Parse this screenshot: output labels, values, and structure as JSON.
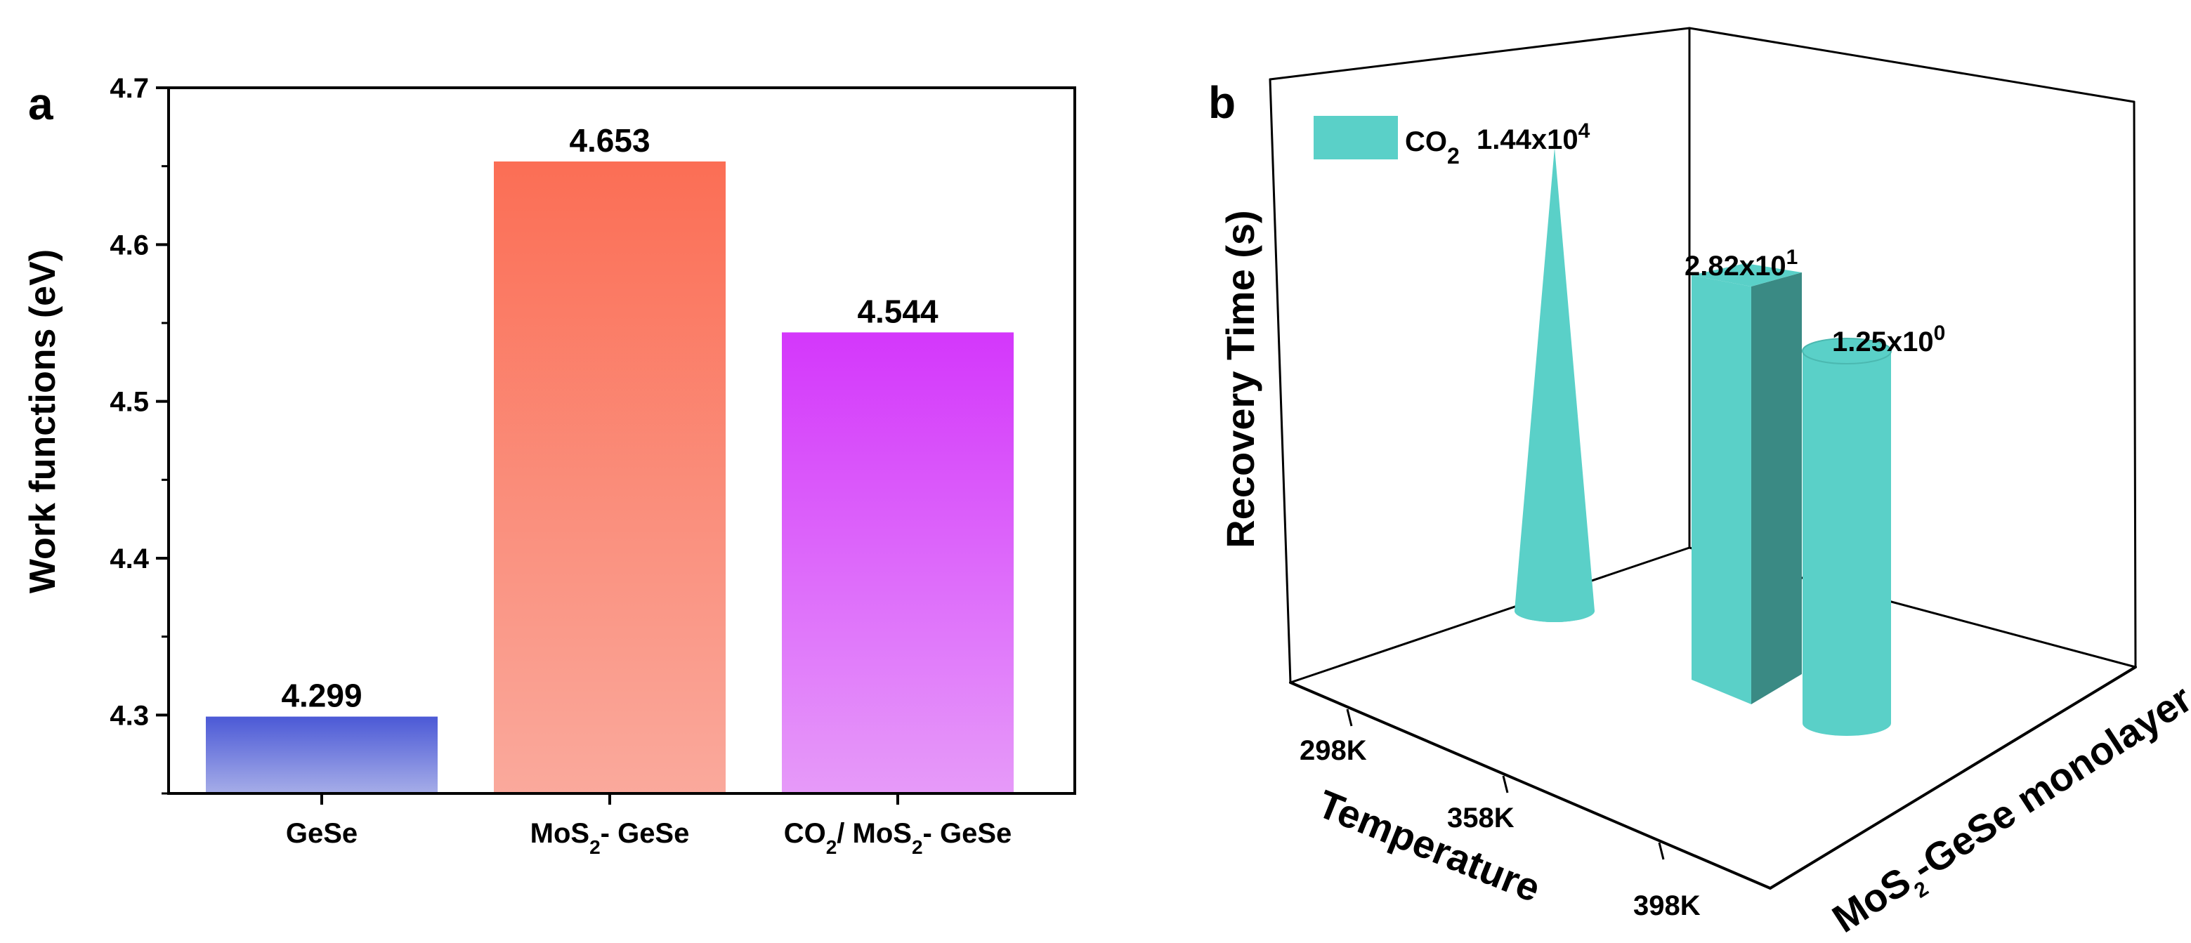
{
  "chart_data": [
    {
      "panel": "a",
      "type": "bar",
      "ylabel": "Work functions (eV)",
      "xlabel": "",
      "ylim": [
        4.25,
        4.7
      ],
      "yticks": [
        "4.3",
        "4.4",
        "4.5",
        "4.6",
        "4.7"
      ],
      "categories": [
        {
          "pre": "GeSe",
          "sub": "",
          "post": ""
        },
        {
          "pre": "MoS",
          "sub": "2",
          "post": "- GeSe"
        },
        {
          "pre": "CO",
          "sub": "2",
          "post": "/ MoS₂- GeSe"
        }
      ],
      "category_text": [
        "GeSe",
        "MoS2- GeSe",
        "CO2/ MoS2- GeSe"
      ],
      "values": [
        4.299,
        4.653,
        4.544
      ],
      "value_labels": [
        "4.299",
        "4.653",
        "4.544"
      ],
      "colors_top": [
        "#4b59d6",
        "#fb6e55",
        "#d437fb"
      ],
      "colors_bottom": [
        "#a6ade8",
        "#faa99c",
        "#e69af9"
      ]
    },
    {
      "panel": "b",
      "type": "bar3d",
      "zlabel": "Recovery Time (s)",
      "xlabel": "Temperature",
      "ylabel_pre": "MoS",
      "ylabel_sub": "2",
      "ylabel_post": "-GeSe monolayer",
      "categories": [
        "298K",
        "358K",
        "398K"
      ],
      "values": [
        14400,
        28.2,
        1.25
      ],
      "value_labels": [
        {
          "mant": "1.44x10",
          "exp": "4"
        },
        {
          "mant": "2.82x10",
          "exp": "1"
        },
        {
          "mant": "1.25x10",
          "exp": "0"
        }
      ],
      "shapes": [
        "cone",
        "box",
        "cylinder"
      ],
      "legend": {
        "pre": "CO",
        "sub": "2"
      },
      "color": "#5ad0c8",
      "color_dark": "#3a8a84"
    }
  ]
}
